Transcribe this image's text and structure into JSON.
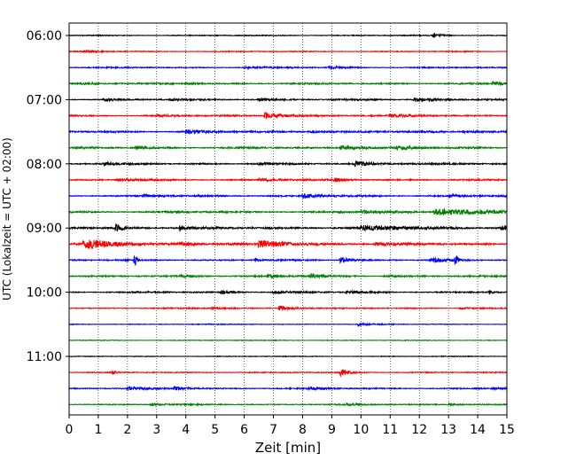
{
  "chart_data": {
    "type": "line",
    "chart_kind": "helicorder",
    "xlabel": "Zeit  [min]",
    "ylabel": "UTC (Lokalzeit = UTC + 02:00)",
    "xlim": [
      0,
      15
    ],
    "x_ticks": [
      0,
      1,
      2,
      3,
      4,
      5,
      6,
      7,
      8,
      9,
      10,
      11,
      12,
      13,
      14,
      15
    ],
    "x_grid": true,
    "x_grid_style": "dotted",
    "y_grid": false,
    "trace_interval_minutes": 15,
    "trace_colors": [
      "#000000",
      "#ff0000",
      "#0000ff",
      "#008000"
    ],
    "y_tick_labels": [
      {
        "label": "06:00",
        "row": 0
      },
      {
        "label": "07:00",
        "row": 4
      },
      {
        "label": "08:00",
        "row": 8
      },
      {
        "label": "09:00",
        "row": 12
      },
      {
        "label": "10:00",
        "row": 16
      },
      {
        "label": "11:00",
        "row": 20
      }
    ],
    "traces": [
      {
        "start": "06:00",
        "noise": 0.8,
        "events": [
          {
            "t": 12.5,
            "amp": 4,
            "dur": 0.25
          }
        ]
      },
      {
        "start": "06:15",
        "noise": 0.8,
        "events": [
          {
            "t": 0.5,
            "amp": 1.5,
            "dur": 0.5
          }
        ]
      },
      {
        "start": "06:30",
        "noise": 1.0,
        "events": [
          {
            "t": 8.9,
            "amp": 3,
            "dur": 0.4
          },
          {
            "t": 6.0,
            "amp": 1.5,
            "dur": 0.8
          }
        ]
      },
      {
        "start": "06:45",
        "noise": 1.2,
        "events": [
          {
            "t": 14.5,
            "amp": 2.5,
            "dur": 1.0
          },
          {
            "t": 0.4,
            "amp": 2,
            "dur": 0.5
          },
          {
            "t": 4.0,
            "amp": 1.5,
            "dur": 0.5
          }
        ]
      },
      {
        "start": "07:00",
        "noise": 1.2,
        "events": [
          {
            "t": 1.2,
            "amp": 3.5,
            "dur": 0.3
          },
          {
            "t": 11.8,
            "amp": 3,
            "dur": 1.0
          },
          {
            "t": 6.5,
            "amp": 2,
            "dur": 0.5
          },
          {
            "t": 3.5,
            "amp": 2,
            "dur": 0.4
          }
        ]
      },
      {
        "start": "07:15",
        "noise": 1.2,
        "events": [
          {
            "t": 6.7,
            "amp": 7,
            "dur": 0.6
          },
          {
            "t": 11.0,
            "amp": 2.5,
            "dur": 1.0
          },
          {
            "t": 3.0,
            "amp": 2,
            "dur": 0.5
          }
        ]
      },
      {
        "start": "07:30",
        "noise": 1.5,
        "events": [
          {
            "t": 4.0,
            "amp": 3.5,
            "dur": 0.5
          },
          {
            "t": 8.2,
            "amp": 2.5,
            "dur": 0.6
          },
          {
            "t": 13.5,
            "amp": 2,
            "dur": 0.8
          }
        ]
      },
      {
        "start": "07:45",
        "noise": 1.4,
        "events": [
          {
            "t": 9.3,
            "amp": 5,
            "dur": 0.6
          },
          {
            "t": 11.2,
            "amp": 3,
            "dur": 0.5
          },
          {
            "t": 2.3,
            "amp": 2.5,
            "dur": 0.5
          }
        ]
      },
      {
        "start": "08:00",
        "noise": 1.3,
        "events": [
          {
            "t": 9.8,
            "amp": 4.5,
            "dur": 0.7
          },
          {
            "t": 6.5,
            "amp": 3,
            "dur": 0.4
          },
          {
            "t": 1.2,
            "amp": 2.5,
            "dur": 0.5
          }
        ]
      },
      {
        "start": "08:15",
        "noise": 1.2,
        "events": [
          {
            "t": 9.1,
            "amp": 3.5,
            "dur": 0.4
          },
          {
            "t": 6.5,
            "amp": 3,
            "dur": 0.6
          },
          {
            "t": 1.7,
            "amp": 2.5,
            "dur": 0.6
          }
        ]
      },
      {
        "start": "08:30",
        "noise": 1.3,
        "events": [
          {
            "t": 8.0,
            "amp": 4.5,
            "dur": 0.5
          },
          {
            "t": 13.0,
            "amp": 2.5,
            "dur": 0.6
          },
          {
            "t": 2.5,
            "amp": 2,
            "dur": 0.5
          }
        ]
      },
      {
        "start": "08:45",
        "noise": 1.5,
        "events": [
          {
            "t": 12.5,
            "amp": 6,
            "dur": 2.0
          },
          {
            "t": 10.0,
            "amp": 3,
            "dur": 0.6
          }
        ]
      },
      {
        "start": "09:00",
        "noise": 1.8,
        "events": [
          {
            "t": 1.6,
            "amp": 8,
            "dur": 0.2
          },
          {
            "t": 3.8,
            "amp": 6,
            "dur": 0.2
          },
          {
            "t": 14.8,
            "amp": 6,
            "dur": 0.5
          },
          {
            "t": 10.0,
            "amp": 4,
            "dur": 1.5
          }
        ]
      },
      {
        "start": "09:15",
        "noise": 1.6,
        "events": [
          {
            "t": 0.5,
            "amp": 9,
            "dur": 1.2
          },
          {
            "t": 6.5,
            "amp": 7,
            "dur": 1.0
          },
          {
            "t": 3.8,
            "amp": 4,
            "dur": 0.5
          },
          {
            "t": 10.5,
            "amp": 3,
            "dur": 0.6
          }
        ]
      },
      {
        "start": "09:30",
        "noise": 1.2,
        "events": [
          {
            "t": 2.25,
            "amp": 20,
            "dur": 0.05
          },
          {
            "t": 13.25,
            "amp": 20,
            "dur": 0.05
          },
          {
            "t": 9.3,
            "amp": 7,
            "dur": 0.3
          },
          {
            "t": 12.4,
            "amp": 6,
            "dur": 0.4
          },
          {
            "t": 6.4,
            "amp": 5,
            "dur": 0.05
          }
        ]
      },
      {
        "start": "09:45",
        "noise": 1.2,
        "events": [
          {
            "t": 8.3,
            "amp": 5,
            "dur": 0.3
          },
          {
            "t": 3.8,
            "amp": 3,
            "dur": 0.5
          },
          {
            "t": 6.8,
            "amp": 3,
            "dur": 0.5
          },
          {
            "t": 10.8,
            "amp": 2,
            "dur": 0.5
          }
        ]
      },
      {
        "start": "10:00",
        "noise": 1.2,
        "events": [
          {
            "t": 5.2,
            "amp": 4,
            "dur": 0.3
          },
          {
            "t": 14.4,
            "amp": 4,
            "dur": 0.1
          },
          {
            "t": 7.0,
            "amp": 2.5,
            "dur": 0.6
          },
          {
            "t": 9.5,
            "amp": 2.5,
            "dur": 0.6
          }
        ]
      },
      {
        "start": "10:15",
        "noise": 0.9,
        "events": [
          {
            "t": 7.2,
            "amp": 6,
            "dur": 0.4
          },
          {
            "t": 4.9,
            "amp": 2,
            "dur": 0.4
          },
          {
            "t": 13.4,
            "amp": 1.5,
            "dur": 0.4
          }
        ]
      },
      {
        "start": "10:30",
        "noise": 0.7,
        "events": [
          {
            "t": 9.9,
            "amp": 3,
            "dur": 0.3
          }
        ]
      },
      {
        "start": "10:45",
        "noise": 0.6,
        "events": []
      },
      {
        "start": "11:00",
        "noise": 0.6,
        "events": []
      },
      {
        "start": "11:15",
        "noise": 0.8,
        "events": [
          {
            "t": 9.3,
            "amp": 7,
            "dur": 0.3
          },
          {
            "t": 1.5,
            "amp": 4,
            "dur": 0.1
          }
        ]
      },
      {
        "start": "11:30",
        "noise": 1.1,
        "events": [
          {
            "t": 3.6,
            "amp": 4,
            "dur": 0.4
          },
          {
            "t": 8.2,
            "amp": 3.5,
            "dur": 0.4
          },
          {
            "t": 2.0,
            "amp": 2.5,
            "dur": 0.5
          },
          {
            "t": 14.5,
            "amp": 2,
            "dur": 0.5
          }
        ]
      },
      {
        "start": "11:45",
        "noise": 1.0,
        "events": [
          {
            "t": 2.8,
            "amp": 3,
            "dur": 0.3
          },
          {
            "t": 9.5,
            "amp": 2,
            "dur": 0.4
          },
          {
            "t": 13.0,
            "amp": 2,
            "dur": 0.4
          }
        ]
      }
    ]
  }
}
